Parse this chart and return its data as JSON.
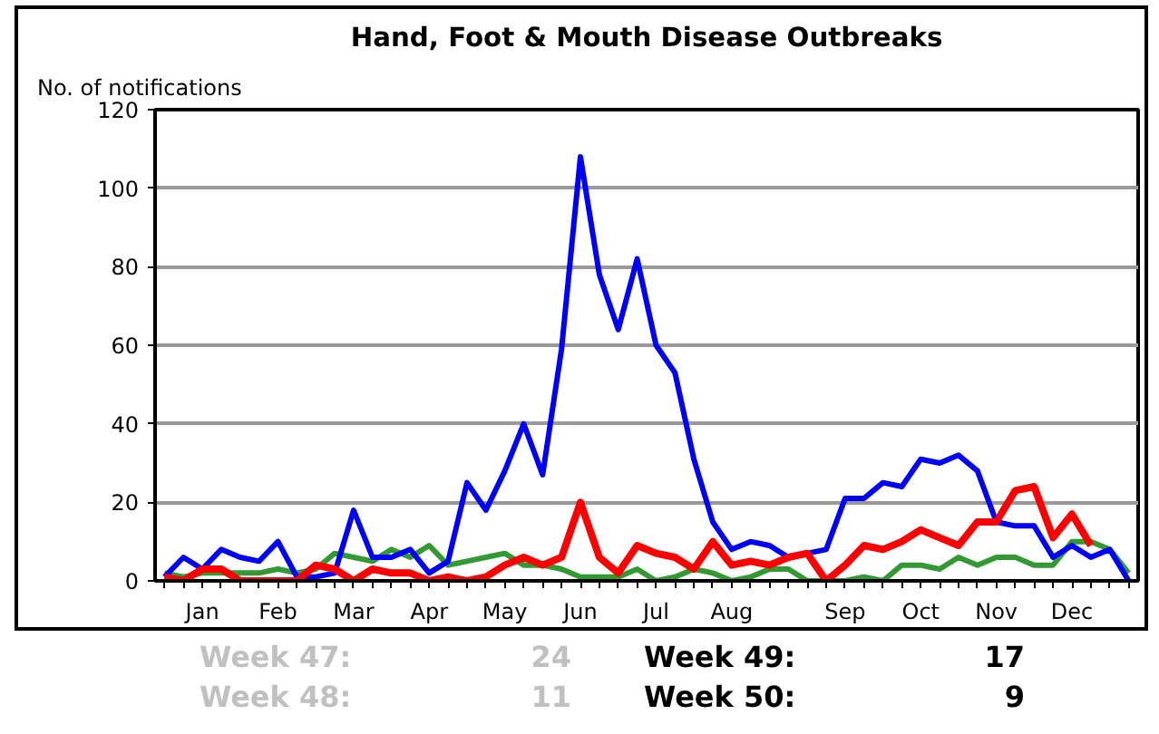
{
  "chart_data": {
    "type": "line",
    "title": "Hand, Foot & Mouth Disease Outbreaks",
    "ylabel": "No. of notifications",
    "categories": [
      null,
      null,
      "Jan",
      null,
      null,
      null,
      "Feb",
      null,
      null,
      null,
      "Mar",
      null,
      null,
      null,
      "Apr",
      null,
      null,
      null,
      "May",
      null,
      null,
      null,
      "Jun",
      null,
      null,
      null,
      "Jul",
      null,
      null,
      null,
      "Aug",
      null,
      null,
      null,
      null,
      null,
      "Sep",
      null,
      null,
      null,
      "Oct",
      null,
      null,
      null,
      "Nov",
      null,
      null,
      null,
      "Dec",
      null,
      null,
      null
    ],
    "ylim": [
      0,
      120
    ],
    "yticks": [
      0,
      20,
      40,
      60,
      80,
      100,
      120
    ],
    "grid": "y",
    "line_style": "solid",
    "series": [
      {
        "color": "#339933",
        "values": [
          2,
          1,
          2,
          2,
          2,
          2,
          3,
          2,
          3,
          7,
          6,
          5,
          8,
          6,
          9,
          4,
          5,
          6,
          7,
          4,
          4,
          3,
          1,
          1,
          1,
          3,
          0,
          1,
          3,
          2,
          0,
          1,
          3,
          3,
          0,
          0,
          0,
          1,
          0,
          4,
          4,
          3,
          6,
          4,
          6,
          6,
          4,
          4,
          10,
          10,
          8,
          2
        ]
      },
      {
        "color": "#0000ff",
        "values": [
          1,
          6,
          3,
          8,
          6,
          5,
          10,
          1,
          1,
          2,
          18,
          6,
          6,
          8,
          2,
          5,
          25,
          18,
          28,
          40,
          27,
          59,
          108,
          78,
          64,
          82,
          60,
          53,
          31,
          15,
          8,
          10,
          9,
          6,
          7,
          8,
          21,
          21,
          25,
          24,
          31,
          30,
          32,
          28,
          15,
          14,
          14,
          6,
          9,
          6,
          8,
          0
        ]
      },
      {
        "color": "#ff0000",
        "values": [
          1,
          0,
          3,
          3,
          0,
          0,
          0,
          0,
          4,
          3,
          0,
          3,
          2,
          2,
          0,
          1,
          0,
          1,
          4,
          6,
          4,
          6,
          20,
          6,
          2,
          9,
          7,
          6,
          3,
          10,
          4,
          5,
          4,
          6,
          7,
          0,
          4,
          9,
          8,
          10,
          13,
          11,
          9,
          15,
          15,
          23,
          24,
          11,
          17,
          9,
          null,
          null
        ]
      }
    ],
    "annotations": [
      "Week 47:",
      "24",
      "Week 49:",
      "17",
      "Week 48:",
      "11",
      "Week 50:",
      "9"
    ]
  }
}
